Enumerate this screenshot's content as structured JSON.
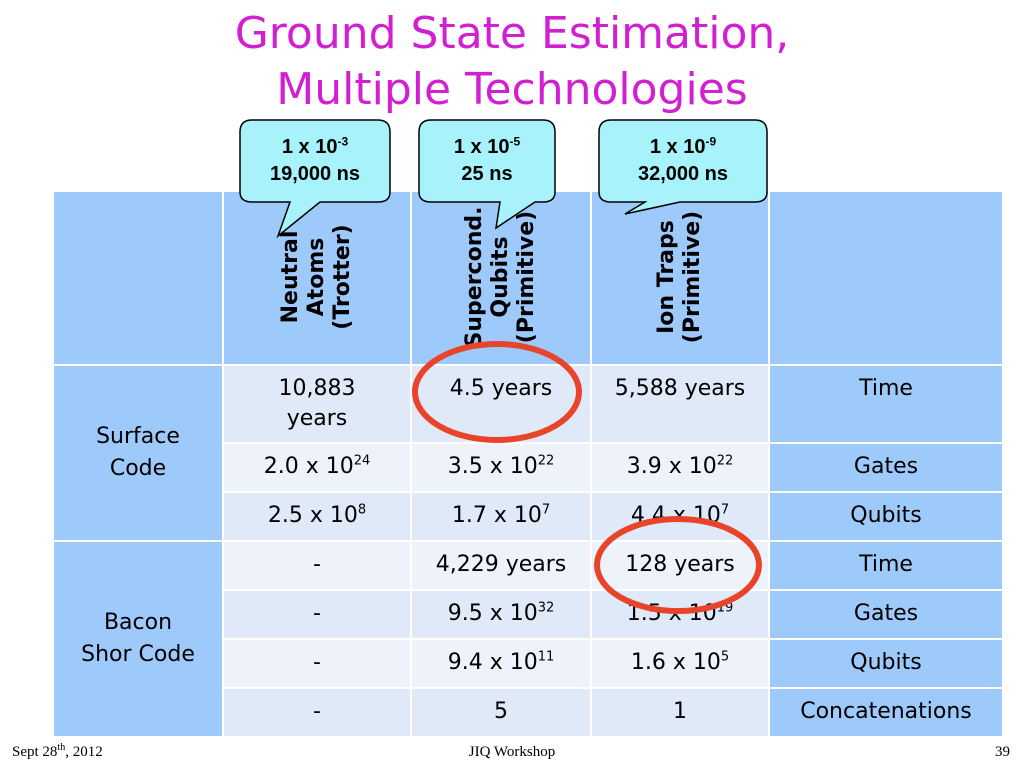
{
  "title": {
    "line1": "Ground State Estimation,",
    "line2": "Multiple Technologies"
  },
  "callouts": [
    {
      "mantissa": "1 x 10",
      "exponent": "-3",
      "time": "19,000 ns"
    },
    {
      "mantissa": "1 x 10",
      "exponent": "-5",
      "time": "25 ns"
    },
    {
      "mantissa": "1 x 10",
      "exponent": "-9",
      "time": "32,000 ns"
    }
  ],
  "columns": [
    {
      "lines": [
        "Neutral",
        "Atoms",
        "(Trotter)"
      ]
    },
    {
      "lines": [
        "Supercond.",
        "Qubits",
        "(Primitive)"
      ]
    },
    {
      "lines": [
        "Ion Traps",
        "(Primitive)"
      ]
    }
  ],
  "groups": [
    {
      "name_line1": "Surface",
      "name_line2": "Code"
    },
    {
      "name_line1": "Bacon",
      "name_line2": "Shor Code"
    }
  ],
  "rows": {
    "sc_time": {
      "c1_l1": "10,883",
      "c1_l2": "years",
      "c2": "4.5 years",
      "c3": "5,588 years",
      "label": "Time"
    },
    "sc_gates": {
      "c1_base": "2.0 x 10",
      "c1_exp": "24",
      "c2_base": "3.5 x 10",
      "c2_exp": "22",
      "c3_base": "3.9 x 10",
      "c3_exp": "22",
      "label": "Gates"
    },
    "sc_qubits": {
      "c1_base": "2.5 x 10",
      "c1_exp": "8",
      "c2_base": "1.7 x 10",
      "c2_exp": "7",
      "c3_base": "4.4 x 10",
      "c3_exp": "7",
      "label": "Qubits"
    },
    "bs_time": {
      "c1": "-",
      "c2": "4,229 years",
      "c3": "128 years",
      "label": "Time"
    },
    "bs_gates": {
      "c1": "-",
      "c2_base": "9.5 x 10",
      "c2_exp": "32",
      "c3_base": "1.5 x 10",
      "c3_exp": "19",
      "label": "Gates"
    },
    "bs_qubits": {
      "c1": "-",
      "c2_base": "9.4 x 10",
      "c2_exp": "11",
      "c3_base": "1.6 x 10",
      "c3_exp": "5",
      "label": "Qubits"
    },
    "bs_concat": {
      "c1": "-",
      "c2": "5",
      "c3": "1",
      "label": "Concatenations"
    }
  },
  "footer": {
    "date_base": "Sept 28",
    "date_sup": "th",
    "date_rest": ", 2012",
    "center": "JIQ Workshop",
    "page": "39"
  },
  "colors": {
    "title": "#d21fd2",
    "header_blue": "#9ec9fb",
    "callout_fill": "#a8f3fb",
    "highlight_ring": "#e8442a"
  }
}
